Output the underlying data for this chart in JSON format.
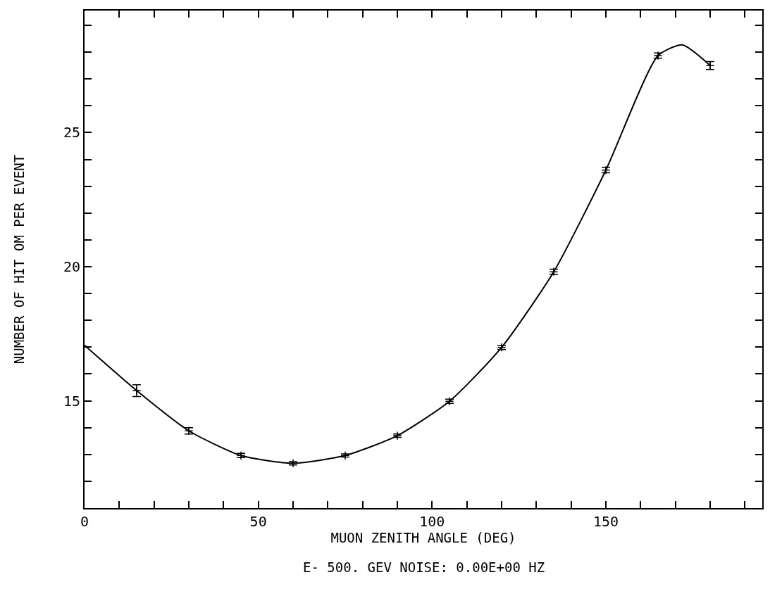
{
  "chart_data": {
    "type": "line",
    "xlabel": "MUON ZENITH ANGLE (DEG)",
    "ylabel": "NUMBER OF HIT OM PER EVENT",
    "annotations": [
      "E- 500. GEV NOISE: 0.00E+00 HZ"
    ],
    "series": [
      {
        "type": "scatter",
        "color": "#000000",
        "marker": "cross",
        "x": [
          15,
          30,
          45,
          60,
          75,
          90,
          105,
          120,
          135,
          150,
          165,
          180
        ],
        "values": [
          15.38,
          13.88,
          12.96,
          12.67,
          12.96,
          13.7,
          14.98,
          16.99,
          19.81,
          23.6,
          27.87,
          27.5
        ],
        "errors": [
          0.22,
          0.12,
          0.08,
          0.06,
          0.06,
          0.06,
          0.08,
          0.08,
          0.1,
          0.1,
          0.1,
          0.15
        ]
      },
      {
        "color": "#000000",
        "line_style": "solid",
        "x": [
          0,
          15,
          30,
          45,
          60,
          75,
          90,
          105,
          120,
          135,
          150,
          165,
          172,
          180
        ],
        "values": [
          17.07,
          15.38,
          13.88,
          12.96,
          12.67,
          12.96,
          13.7,
          14.98,
          16.99,
          19.81,
          23.6,
          27.87,
          28.27,
          27.5
        ]
      }
    ],
    "xlim": [
      0,
      195
    ],
    "ylim": [
      11,
      29.55
    ],
    "xticks": [
      0,
      {
        "value": 10,
        "label": null
      },
      {
        "value": 20,
        "label": null
      },
      {
        "value": 30,
        "label": null
      },
      {
        "value": 40,
        "label": null
      },
      50,
      {
        "value": 60,
        "label": null
      },
      {
        "value": 70,
        "label": null
      },
      {
        "value": 80,
        "label": null
      },
      {
        "value": 90,
        "label": null
      },
      100,
      {
        "value": 110,
        "label": null
      },
      {
        "value": 120,
        "label": null
      },
      {
        "value": 130,
        "label": null
      },
      {
        "value": 140,
        "label": null
      },
      150,
      {
        "value": 160,
        "label": null
      },
      {
        "value": 170,
        "label": null
      },
      {
        "value": 180,
        "label": null
      },
      {
        "value": 190,
        "label": null
      }
    ],
    "yticks": [
      {
        "value": 12,
        "label": null
      },
      {
        "value": 13,
        "label": null
      },
      {
        "value": 14,
        "label": null
      },
      15,
      {
        "value": 16,
        "label": null
      },
      {
        "value": 17,
        "label": null
      },
      {
        "value": 18,
        "label": null
      },
      {
        "value": 19,
        "label": null
      },
      20,
      {
        "value": 21,
        "label": null
      },
      {
        "value": 22,
        "label": null
      },
      {
        "value": 23,
        "label": null
      },
      {
        "value": 24,
        "label": null
      },
      25,
      {
        "value": 26,
        "label": null
      },
      {
        "value": 27,
        "label": null
      },
      {
        "value": 28,
        "label": null
      },
      {
        "value": 29,
        "label": null
      }
    ],
    "tick_labels": true
  }
}
